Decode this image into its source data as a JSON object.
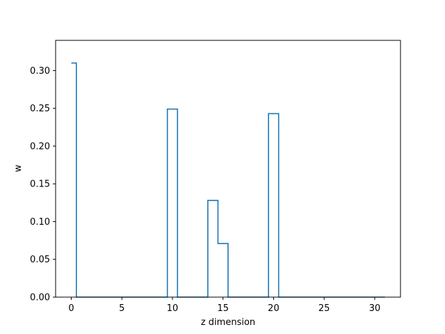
{
  "chart_data": {
    "type": "line",
    "drawstyle": "steps-mid",
    "xlabel": "z dimension",
    "ylabel": "w",
    "xlim": [
      -1.55,
      32.55
    ],
    "ylim": [
      0.0,
      0.34
    ],
    "xticks": [
      0,
      5,
      10,
      15,
      20,
      25,
      30
    ],
    "yticks": [
      0.0,
      0.05,
      0.1,
      0.15,
      0.2,
      0.25,
      0.3
    ],
    "ytick_labels": [
      "0.00",
      "0.05",
      "0.10",
      "0.15",
      "0.20",
      "0.25",
      "0.30"
    ],
    "grid": false,
    "color": "#1f77b4",
    "x": [
      0,
      1,
      2,
      3,
      4,
      5,
      6,
      7,
      8,
      9,
      10,
      11,
      12,
      13,
      14,
      15,
      16,
      17,
      18,
      19,
      20,
      21,
      22,
      23,
      24,
      25,
      26,
      27,
      28,
      29,
      30,
      31
    ],
    "y": [
      0.31,
      0,
      0,
      0,
      0,
      0,
      0,
      0,
      0,
      0,
      0.249,
      0,
      0,
      0,
      0.128,
      0.071,
      0,
      0,
      0,
      0,
      0.243,
      0,
      0,
      0,
      0,
      0,
      0,
      0,
      0,
      0,
      0,
      0
    ]
  }
}
